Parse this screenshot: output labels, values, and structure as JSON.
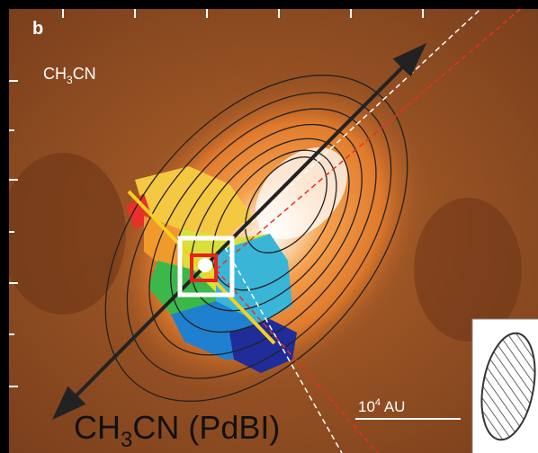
{
  "panel_label": "b",
  "species_label": {
    "main": "CH",
    "subscript": "3",
    "rest": "CN"
  },
  "scale_bar": {
    "base": "10",
    "exponent": "4",
    "unit": " AU"
  },
  "caption": {
    "main": "CH",
    "subscript": "3",
    "rest": "CN (PdBI)"
  }
}
